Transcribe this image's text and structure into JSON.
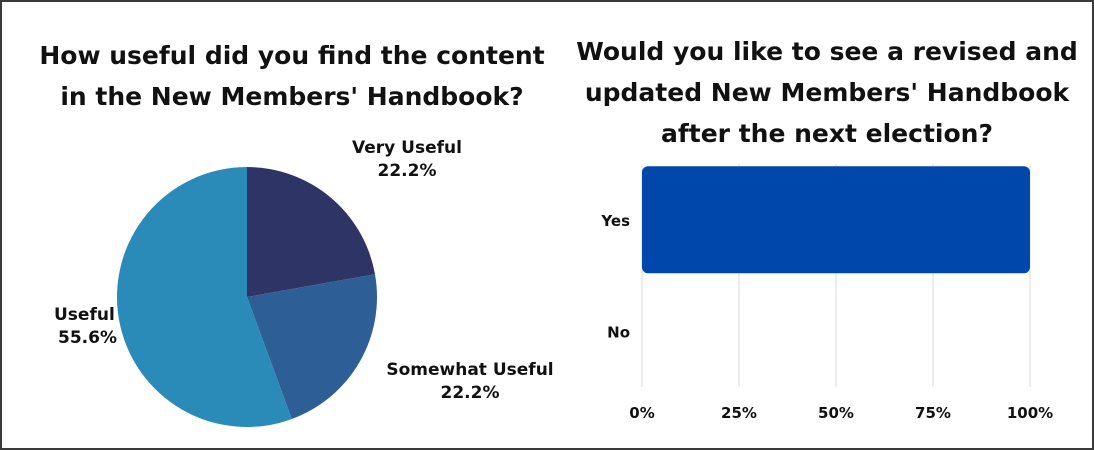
{
  "chart_data": [
    {
      "type": "pie",
      "title_lines": [
        "How useful did you find the content",
        "in the New Members' Handbook?"
      ],
      "slices": [
        {
          "label": "Very Useful",
          "percent_label": "22.2%",
          "value": 22.2,
          "color": "#2e3466"
        },
        {
          "label": "Somewhat Useful",
          "percent_label": "22.2%",
          "value": 22.2,
          "color": "#2e5e96"
        },
        {
          "label": "Useful",
          "percent_label": "55.6%",
          "value": 55.6,
          "color": "#2b8bb8"
        }
      ]
    },
    {
      "type": "bar",
      "orientation": "horizontal",
      "title_lines": [
        "Would you like to see a revised and",
        "updated New Members' Handbook",
        "after the next election?"
      ],
      "categories": [
        "Yes",
        "No"
      ],
      "values": [
        100,
        0
      ],
      "xlim": [
        0,
        100
      ],
      "x_ticks": [
        "0%",
        "25%",
        "50%",
        "75%",
        "100%"
      ],
      "grid": true,
      "bar_color": "#0047ab"
    }
  ]
}
